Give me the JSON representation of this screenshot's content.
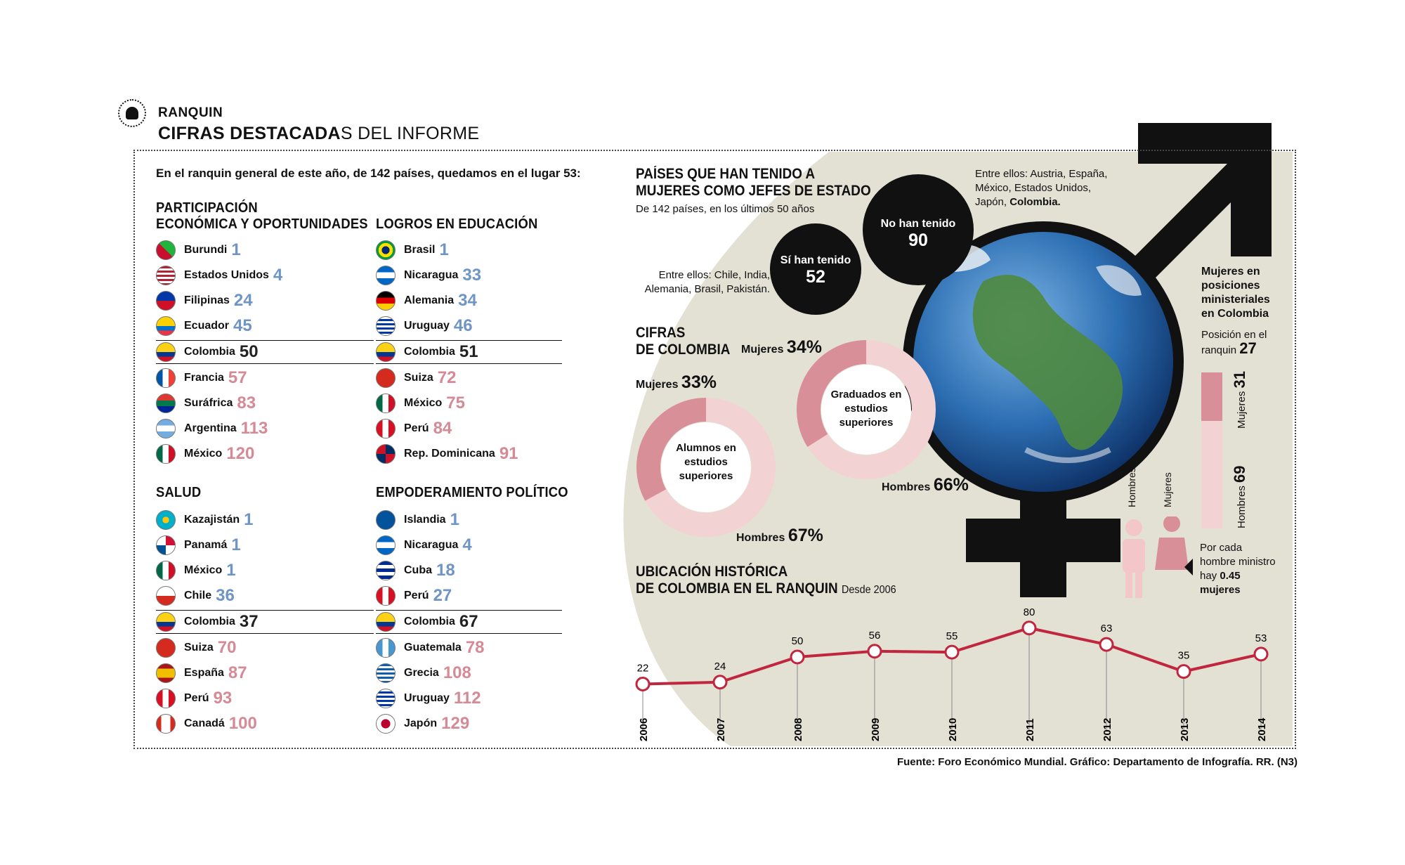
{
  "header": {
    "brand": "RANQUIN",
    "title_bold": "CIFRAS DESTACADA",
    "title_rest": "S DEL INFORME"
  },
  "intro": {
    "text": "En el ranquin general de este año, de 142 países, quedamos en el lugar 53:"
  },
  "colors": {
    "blue": "#6f94c6",
    "pink": "#d58a95",
    "line": "#c0273f",
    "ring_dark": "#d98f98",
    "ring_light": "#f3d2d4",
    "beige": "#e3e1d4"
  },
  "sections": {
    "participacion": {
      "title_1": "PARTICIPACIÓN",
      "title_2": "ECONÓMICA Y OPORTUNIDADES",
      "items": [
        {
          "country": "Burundi",
          "rank": "1",
          "flag": "burundi-flag-icon"
        },
        {
          "country": "Estados Unidos",
          "rank": "4",
          "flag": "usa-flag-icon"
        },
        {
          "country": "Filipinas",
          "rank": "24",
          "flag": "philippines-flag-icon"
        },
        {
          "country": "Ecuador",
          "rank": "45",
          "flag": "ecuador-flag-icon"
        },
        {
          "country": "Colombia",
          "rank": "50",
          "flag": "colombia-flag-icon"
        },
        {
          "country": "Francia",
          "rank": "57",
          "flag": "france-flag-icon"
        },
        {
          "country": "Suráfrica",
          "rank": "83",
          "flag": "south-africa-flag-icon"
        },
        {
          "country": "Argentina",
          "rank": "113",
          "flag": "argentina-flag-icon"
        },
        {
          "country": "México",
          "rank": "120",
          "flag": "mexico-flag-icon"
        }
      ]
    },
    "educacion": {
      "title": "LOGROS EN EDUCACIÓN",
      "items": [
        {
          "country": "Brasil",
          "rank": "1",
          "flag": "brazil-flag-icon"
        },
        {
          "country": "Nicaragua",
          "rank": "33",
          "flag": "nicaragua-flag-icon"
        },
        {
          "country": "Alemania",
          "rank": "34",
          "flag": "germany-flag-icon"
        },
        {
          "country": "Uruguay",
          "rank": "46",
          "flag": "uruguay-flag-icon"
        },
        {
          "country": "Colombia",
          "rank": "51",
          "flag": "colombia-flag-icon"
        },
        {
          "country": "Suiza",
          "rank": "72",
          "flag": "switzerland-flag-icon"
        },
        {
          "country": "México",
          "rank": "75",
          "flag": "mexico-flag-icon"
        },
        {
          "country": "Perú",
          "rank": "84",
          "flag": "peru-flag-icon"
        },
        {
          "country": "Rep. Dominicana",
          "rank": "91",
          "flag": "dominican-republic-flag-icon"
        }
      ]
    },
    "salud": {
      "title": "SALUD",
      "items": [
        {
          "country": "Kazajistán",
          "rank": "1",
          "flag": "kazakhstan-flag-icon"
        },
        {
          "country": "Panamá",
          "rank": "1",
          "flag": "panama-flag-icon"
        },
        {
          "country": "México",
          "rank": "1",
          "flag": "mexico-flag-icon"
        },
        {
          "country": "Chile",
          "rank": "36",
          "flag": "chile-flag-icon"
        },
        {
          "country": "Colombia",
          "rank": "37",
          "flag": "colombia-flag-icon"
        },
        {
          "country": "Suiza",
          "rank": "70",
          "flag": "switzerland-flag-icon"
        },
        {
          "country": "España",
          "rank": "87",
          "flag": "spain-flag-icon"
        },
        {
          "country": "Perú",
          "rank": "93",
          "flag": "peru-flag-icon"
        },
        {
          "country": "Canadá",
          "rank": "100",
          "flag": "canada-flag-icon"
        }
      ]
    },
    "politico": {
      "title": "EMPODERAMIENTO POLÍTICO",
      "items": [
        {
          "country": "Islandia",
          "rank": "1",
          "flag": "iceland-flag-icon"
        },
        {
          "country": "Nicaragua",
          "rank": "4",
          "flag": "nicaragua-flag-icon"
        },
        {
          "country": "Cuba",
          "rank": "18",
          "flag": "cuba-flag-icon"
        },
        {
          "country": "Perú",
          "rank": "27",
          "flag": "peru-flag-icon"
        },
        {
          "country": "Colombia",
          "rank": "67",
          "flag": "colombia-flag-icon"
        },
        {
          "country": "Guatemala",
          "rank": "78",
          "flag": "guatemala-flag-icon"
        },
        {
          "country": "Grecia",
          "rank": "108",
          "flag": "greece-flag-icon"
        },
        {
          "country": "Uruguay",
          "rank": "112",
          "flag": "uruguay-flag-icon"
        },
        {
          "country": "Japón",
          "rank": "129",
          "flag": "japan-flag-icon"
        }
      ]
    }
  },
  "jefes": {
    "title_1": "PAÍSES QUE HAN TENIDO A",
    "title_2": "MUJERES COMO JEFES DE ESTADO",
    "subtitle": "De 142 países, en los últimos 50 años",
    "yes_label": "Sí han tenido",
    "yes_value": "52",
    "no_label": "No han tenido",
    "no_value": "90",
    "yes_examples": "Entre ellos: Chile, India, Alemania, Brasil, Pakistán.",
    "no_examples": "Entre ellos: Austria, España, México, Estados Unidos, Japón,",
    "no_examples_bold": "Colombia."
  },
  "cifras": {
    "title_1": "CIFRAS",
    "title_2": "DE COLOMBIA",
    "alumnos": {
      "label": "Alumnos en estudios superiores",
      "mujeres_label": "Mujeres",
      "mujeres_pct": "33%",
      "hombres_label": "Hombres",
      "hombres_pct": "67%",
      "mujeres": 33,
      "hombres": 67
    },
    "graduados": {
      "label": "Graduados en estudios superiores",
      "mujeres_label": "Mujeres",
      "mujeres_pct": "34%",
      "hombres_label": "Hombres",
      "hombres_pct": "66%",
      "mujeres": 34,
      "hombres": 66
    }
  },
  "ministerial": {
    "title": "Mujeres en posiciones ministeriales en Colombia",
    "pos_label": "Posición en el ranquin",
    "pos_value": "27",
    "mujeres_label": "Mujeres",
    "mujeres_value": "31",
    "hombres_label": "Hombres",
    "hombres_value": "69",
    "mujeres": 31,
    "hombres": 69,
    "icon_hombres_label": "Hombres",
    "icon_mujeres_label": "Mujeres",
    "note_1": "Por cada hombre ministro hay",
    "note_bold": "0.45 mujeres"
  },
  "historico": {
    "title_1": "UBICACIÓN HISTÓRICA",
    "title_2": "DE COLOMBIA EN EL RANQUIN",
    "since": "Desde 2006"
  },
  "chart_data": {
    "type": "line",
    "x": [
      "2006",
      "2007",
      "2008",
      "2009",
      "2010",
      "2011",
      "2012",
      "2013",
      "2014"
    ],
    "series": [
      {
        "values": [
          22,
          24,
          50,
          56,
          55,
          80,
          63,
          35,
          53
        ]
      }
    ],
    "ylim": [
      0,
      90
    ],
    "grid": false
  },
  "footer": {
    "text": "Fuente: Foro Económico Mundial. Gráfico: Departamento de Infografía. RR. (N3)"
  }
}
